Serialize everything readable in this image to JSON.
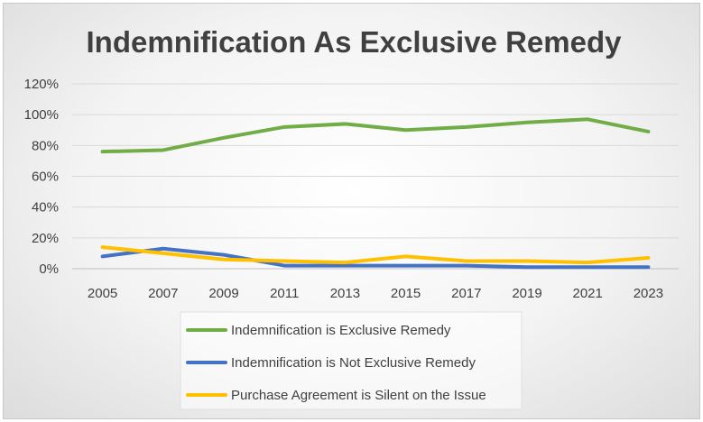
{
  "chart_data": {
    "type": "line",
    "title": "Indemnification As Exclusive Remedy",
    "x": [
      "2005",
      "2007",
      "2009",
      "2011",
      "2013",
      "2015",
      "2017",
      "2019",
      "2021",
      "2023"
    ],
    "ylim": [
      0,
      120
    ],
    "yticks": [
      "0%",
      "20%",
      "40%",
      "60%",
      "80%",
      "100%",
      "120%"
    ],
    "grid": "horizontal",
    "legend_position": "bottom",
    "series": [
      {
        "name": "Indemnification is Exclusive Remedy",
        "color": "#70ad47",
        "values": [
          76,
          77,
          85,
          92,
          94,
          90,
          92,
          95,
          97,
          89
        ]
      },
      {
        "name": "Indemnification is Not Exclusive Remedy",
        "color": "#4472c4",
        "values": [
          8,
          13,
          9,
          2,
          2,
          2,
          2,
          1,
          1,
          1
        ]
      },
      {
        "name": "Purchase Agreement is Silent on the Issue",
        "color": "#ffc000",
        "values": [
          14,
          10,
          6,
          5,
          4,
          8,
          5,
          5,
          4,
          7
        ]
      }
    ]
  }
}
